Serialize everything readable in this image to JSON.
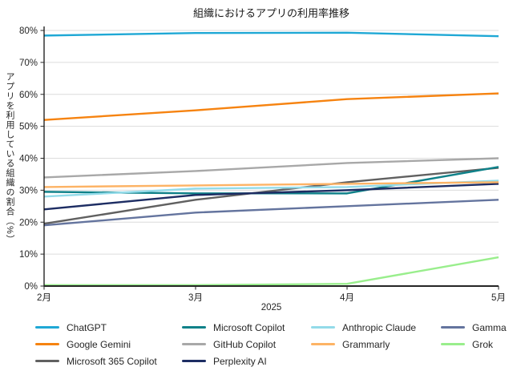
{
  "title": "組織におけるアプリの利用率推移",
  "chart_data": {
    "type": "line",
    "title": "組織におけるアプリの利用率推移",
    "xlabel": "2025",
    "ylabel": "アプリを利用している組織の割合（%）",
    "x": [
      "2月",
      "3月",
      "4月",
      "5月"
    ],
    "ylim": [
      0,
      80
    ],
    "ytick_labels": [
      "0%",
      "10%",
      "20%",
      "30%",
      "40%",
      "50%",
      "60%",
      "70%",
      "80%"
    ],
    "grid": "horizontal-light-gray",
    "legend_position": "bottom",
    "series": [
      {
        "name": "ChatGPT",
        "color": "#1FA8D5",
        "values": [
          78.4,
          79.2,
          79.3,
          78.2
        ]
      },
      {
        "name": "Google Gemini",
        "color": "#F68310",
        "values": [
          52,
          55,
          58.5,
          60.3
        ]
      },
      {
        "name": "Microsoft 365 Copilot",
        "color": "#606060",
        "values": [
          19.5,
          27,
          32.5,
          37
        ]
      },
      {
        "name": "Microsoft Copilot",
        "color": "#0F8189",
        "values": [
          29.5,
          29,
          29,
          37.3
        ]
      },
      {
        "name": "GitHub Copilot",
        "color": "#A8A8A8",
        "values": [
          34,
          36,
          38.5,
          40
        ]
      },
      {
        "name": "Perplexity AI",
        "color": "#1D2D63",
        "values": [
          24,
          28.5,
          30,
          32
        ]
      },
      {
        "name": "Anthropic Claude",
        "color": "#93DBE9",
        "values": [
          28,
          30.5,
          31,
          33
        ]
      },
      {
        "name": "Grammarly",
        "color": "#FDB365",
        "values": [
          31,
          31.5,
          32,
          32.5
        ]
      },
      {
        "name": "Gamma",
        "color": "#64749E",
        "values": [
          19,
          23,
          25,
          27
        ]
      },
      {
        "name": "Grok",
        "color": "#99EE8C",
        "values": [
          0.3,
          0.3,
          0.7,
          9
        ]
      }
    ],
    "legend_columns": [
      [
        "ChatGPT",
        "Google Gemini",
        "Microsoft 365 Copilot"
      ],
      [
        "Microsoft Copilot",
        "GitHub Copilot",
        "Perplexity AI"
      ],
      [
        "Anthropic Claude",
        "Grammarly"
      ],
      [
        "Gamma",
        "Grok"
      ]
    ]
  },
  "colors": {
    "gridline": "#dcdcdc",
    "axis_spine": "#262626",
    "tick_label": "#262626"
  }
}
